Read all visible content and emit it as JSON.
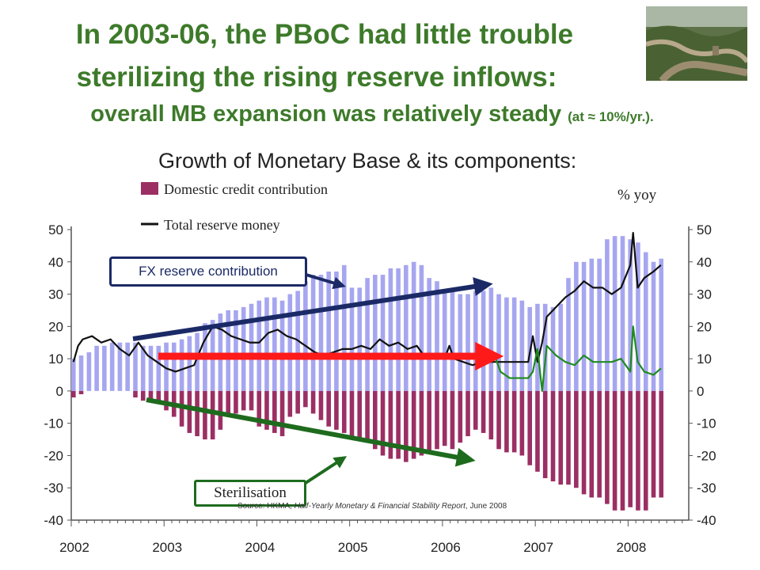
{
  "title_line1": "In 2003-06, the PBoC had little trouble",
  "title_line2": "sterilizing the rising reserve inflows:",
  "title_line3": "overall MB expansion was relatively steady",
  "title_line3_note": "(at ≈ 10%/yr.).",
  "subtitle": "Growth of Monetary Base & its components:",
  "photo_icon": "great-wall-photo",
  "callouts": {
    "fx": "FX reserve contribution",
    "sterilisation": "Sterilisation"
  },
  "source": {
    "prefix": "Source: HKMA,",
    "publication": "Half-Yearly Monetary & Financial Stability Report",
    "suffix": ", June 2008"
  },
  "colors": {
    "fx_bars": "#a6a6f0",
    "domestic_bars": "#9b2f63",
    "total_line": "#111111",
    "overlay_line": "#1f8a1f",
    "arrow_blue": "#1b2a66",
    "arrow_red": "#ff1a1a",
    "arrow_green": "#1e6b1e",
    "title": "#3d7a2a"
  },
  "chart_data": {
    "type": "bar",
    "unit_label": "% yoy",
    "legend": [
      "Domestic credit contribution",
      "Total reserve money"
    ],
    "legend_placement": "top-left",
    "ylim": [
      -40,
      50
    ],
    "yticks": [
      50,
      40,
      30,
      20,
      10,
      0,
      -10,
      -20,
      -30,
      -40
    ],
    "xlim": [
      2002,
      2008.5
    ],
    "xticks": [
      "2002",
      "2003",
      "2004",
      "2005",
      "2006",
      "2007",
      "2008"
    ],
    "series": [
      {
        "name": "FX reserve contribution",
        "kind": "bar",
        "x": [
          2002.0,
          2002.083,
          2002.167,
          2002.25,
          2002.333,
          2002.417,
          2002.5,
          2002.583,
          2002.667,
          2002.75,
          2002.833,
          2002.917,
          2003.0,
          2003.083,
          2003.167,
          2003.25,
          2003.333,
          2003.417,
          2003.5,
          2003.583,
          2003.667,
          2003.75,
          2003.833,
          2003.917,
          2004.0,
          2004.083,
          2004.167,
          2004.25,
          2004.333,
          2004.417,
          2004.5,
          2004.583,
          2004.667,
          2004.75,
          2004.833,
          2004.917,
          2005.0,
          2005.083,
          2005.167,
          2005.25,
          2005.333,
          2005.417,
          2005.5,
          2005.583,
          2005.667,
          2005.75,
          2005.833,
          2005.917,
          2006.0,
          2006.083,
          2006.167,
          2006.25,
          2006.333,
          2006.417,
          2006.5,
          2006.583,
          2006.667,
          2006.75,
          2006.833,
          2006.917,
          2007.0,
          2007.083,
          2007.167,
          2007.25,
          2007.333,
          2007.417,
          2007.5,
          2007.583,
          2007.667,
          2007.75,
          2007.833,
          2007.917,
          2008.0,
          2008.083,
          2008.167,
          2008.25,
          2008.333
        ],
        "values": [
          10,
          11,
          12,
          14,
          14,
          15,
          15,
          15,
          15,
          14,
          14,
          14,
          15,
          15,
          16,
          17,
          18,
          21,
          22,
          24,
          25,
          25,
          26,
          27,
          28,
          29,
          29,
          28,
          30,
          31,
          34,
          36,
          36,
          37,
          37,
          39,
          32,
          32,
          35,
          36,
          36,
          38,
          38,
          39,
          40,
          39,
          35,
          34,
          31,
          31,
          30,
          30,
          31,
          31,
          32,
          30,
          29,
          29,
          28,
          26,
          27,
          27,
          26,
          27,
          35,
          40,
          40,
          41,
          41,
          47,
          48,
          48,
          47,
          46,
          43,
          40,
          41
        ]
      },
      {
        "name": "Domestic credit contribution",
        "kind": "bar",
        "x": [
          2002.0,
          2002.083,
          2002.167,
          2002.25,
          2002.333,
          2002.417,
          2002.5,
          2002.583,
          2002.667,
          2002.75,
          2002.833,
          2002.917,
          2003.0,
          2003.083,
          2003.167,
          2003.25,
          2003.333,
          2003.417,
          2003.5,
          2003.583,
          2003.667,
          2003.75,
          2003.833,
          2003.917,
          2004.0,
          2004.083,
          2004.167,
          2004.25,
          2004.333,
          2004.417,
          2004.5,
          2004.583,
          2004.667,
          2004.75,
          2004.833,
          2004.917,
          2005.0,
          2005.083,
          2005.167,
          2005.25,
          2005.333,
          2005.417,
          2005.5,
          2005.583,
          2005.667,
          2005.75,
          2005.833,
          2005.917,
          2006.0,
          2006.083,
          2006.167,
          2006.25,
          2006.333,
          2006.417,
          2006.5,
          2006.583,
          2006.667,
          2006.75,
          2006.833,
          2006.917,
          2007.0,
          2007.083,
          2007.167,
          2007.25,
          2007.333,
          2007.417,
          2007.5,
          2007.583,
          2007.667,
          2007.75,
          2007.833,
          2007.917,
          2008.0,
          2008.083,
          2008.167,
          2008.25,
          2008.333
        ],
        "values": [
          -2,
          -1,
          0,
          0,
          0,
          0,
          0,
          0,
          -2,
          -3,
          -3,
          -4,
          -6,
          -8,
          -11,
          -13,
          -14,
          -15,
          -15,
          -12,
          -8,
          -7,
          -6,
          -6,
          -11,
          -12,
          -13,
          -14,
          -8,
          -7,
          -5,
          -7,
          -9,
          -11,
          -12,
          -13,
          -14,
          -15,
          -16,
          -18,
          -20,
          -21,
          -21,
          -22,
          -21,
          -20,
          -19,
          -18,
          -17,
          -18,
          -16,
          -14,
          -12,
          -13,
          -15,
          -18,
          -19,
          -19,
          -20,
          -23,
          -25,
          -27,
          -28,
          -29,
          -29,
          -30,
          -32,
          -33,
          -33,
          -35,
          -37,
          -37,
          -36,
          -37,
          -37,
          -33,
          -33
        ]
      },
      {
        "name": "Total reserve money",
        "kind": "line",
        "x": [
          2002.0,
          2002.05,
          2002.1,
          2002.2,
          2002.3,
          2002.4,
          2002.5,
          2002.6,
          2002.7,
          2002.8,
          2002.9,
          2003.0,
          2003.1,
          2003.2,
          2003.3,
          2003.4,
          2003.5,
          2003.6,
          2003.7,
          2003.8,
          2003.9,
          2004.0,
          2004.1,
          2004.2,
          2004.3,
          2004.4,
          2004.5,
          2004.6,
          2004.7,
          2004.8,
          2004.9,
          2005.0,
          2005.1,
          2005.2,
          2005.3,
          2005.4,
          2005.5,
          2005.6,
          2005.7,
          2005.8,
          2005.9,
          2006.0,
          2006.05,
          2006.1,
          2006.2,
          2006.3,
          2006.4,
          2006.5,
          2006.6,
          2006.7,
          2006.8,
          2006.9,
          2006.95,
          2007.0,
          2007.05,
          2007.1,
          2007.2,
          2007.3,
          2007.4,
          2007.5,
          2007.6,
          2007.7,
          2007.8,
          2007.9,
          2008.0,
          2008.03,
          2008.08,
          2008.15,
          2008.25,
          2008.33
        ],
        "values": [
          9,
          14,
          16,
          17,
          15,
          16,
          13,
          11,
          15,
          11,
          9,
          7,
          6,
          7,
          8,
          15,
          20,
          19,
          17,
          16,
          15,
          15,
          18,
          19,
          17,
          16,
          14,
          12,
          11,
          12,
          13,
          13,
          14,
          13,
          16,
          14,
          15,
          13,
          14,
          10,
          10,
          10,
          14,
          10,
          9,
          8,
          9,
          9,
          9,
          9,
          9,
          9,
          17,
          9,
          15,
          23,
          26,
          29,
          31,
          34,
          32,
          32,
          30,
          32,
          39,
          49,
          32,
          35,
          37,
          39
        ]
      },
      {
        "name": "",
        "kind": "line",
        "x": [
          2006.45,
          2006.55,
          2006.6,
          2006.7,
          2006.8,
          2006.9,
          2006.95,
          2007.0,
          2007.05,
          2007.1,
          2007.2,
          2007.3,
          2007.4,
          2007.5,
          2007.6,
          2007.7,
          2007.8,
          2007.9,
          2008.0,
          2008.03,
          2008.08,
          2008.15,
          2008.25,
          2008.33
        ],
        "values": [
          10,
          10,
          6,
          4,
          4,
          4,
          6,
          13,
          0,
          14,
          11,
          9,
          8,
          11,
          9,
          9,
          9,
          10,
          6,
          20,
          9,
          6,
          5,
          7
        ]
      }
    ]
  }
}
